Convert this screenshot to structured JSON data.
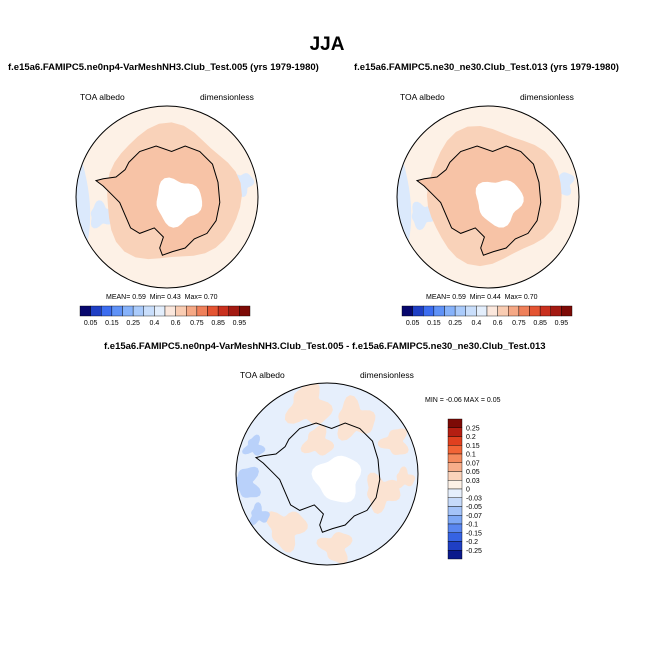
{
  "page": {
    "title": "JJA",
    "field_label": "TOA albedo",
    "units_label": "dimensionless"
  },
  "chart_data": [
    {
      "type": "heatmap",
      "projection": "south-polar-stereographic",
      "title": "f.e15a6.FAMIPC5.ne0np4-VarMeshNH3.Club_Test.005 (yrs 1979-1980)",
      "field": "TOA albedo",
      "units": "dimensionless",
      "stats": {
        "mean_label": "MEAN=",
        "mean": "0.59",
        "min_label": "Min=",
        "min": "0.43",
        "max_label": "Max=",
        "max": "0.70"
      },
      "colorbar": {
        "orientation": "horizontal",
        "tick_labels": [
          "0.05",
          "0.15",
          "0.25",
          "0.4",
          "0.6",
          "0.75",
          "0.85",
          "0.95"
        ],
        "levels": [
          0.05,
          0.1,
          0.15,
          0.2,
          0.25,
          0.3,
          0.4,
          0.5,
          0.6,
          0.65,
          0.7,
          0.75,
          0.8,
          0.85,
          0.9,
          0.95
        ],
        "colors": [
          "#08086e",
          "#1f3fc4",
          "#3c6df0",
          "#5f92f7",
          "#86b2fa",
          "#aacbfb",
          "#c9defb",
          "#e3eefc",
          "#fbe7dc",
          "#f9ccb2",
          "#f5a885",
          "#ef805a",
          "#e45432",
          "#c9301e",
          "#a31a12",
          "#7d0a06"
        ]
      },
      "regions": {
        "ocean_outer_midlatitude": 0.55,
        "sea_ice_ring": 0.63,
        "antarctic_plateau": 0.65,
        "polar_night_no_data": "missing",
        "low_albedo_patches_west": 0.45
      }
    },
    {
      "type": "heatmap",
      "projection": "south-polar-stereographic",
      "title": "f.e15a6.FAMIPC5.ne30_ne30.Club_Test.013 (yrs 1979-1980)",
      "field": "TOA albedo",
      "units": "dimensionless",
      "stats": {
        "mean_label": "MEAN=",
        "mean": "0.59",
        "min_label": "Min=",
        "min": "0.44",
        "max_label": "Max=",
        "max": "0.70"
      },
      "colorbar": {
        "orientation": "horizontal",
        "tick_labels": [
          "0.05",
          "0.15",
          "0.25",
          "0.4",
          "0.6",
          "0.75",
          "0.85",
          "0.95"
        ],
        "levels": [
          0.05,
          0.1,
          0.15,
          0.2,
          0.25,
          0.3,
          0.4,
          0.5,
          0.6,
          0.65,
          0.7,
          0.75,
          0.8,
          0.85,
          0.9,
          0.95
        ],
        "colors": [
          "#08086e",
          "#1f3fc4",
          "#3c6df0",
          "#5f92f7",
          "#86b2fa",
          "#aacbfb",
          "#c9defb",
          "#e3eefc",
          "#fbe7dc",
          "#f9ccb2",
          "#f5a885",
          "#ef805a",
          "#e45432",
          "#c9301e",
          "#a31a12",
          "#7d0a06"
        ]
      },
      "regions": {
        "ocean_outer_midlatitude": 0.55,
        "sea_ice_ring": 0.63,
        "antarctic_plateau": 0.65,
        "polar_night_no_data": "missing",
        "low_albedo_patches_west": 0.46
      }
    },
    {
      "type": "heatmap",
      "projection": "south-polar-stereographic",
      "title": "f.e15a6.FAMIPC5.ne0np4-VarMeshNH3.Club_Test.005 - f.e15a6.FAMIPC5.ne30_ne30.Club_Test.013",
      "field": "TOA albedo",
      "units": "dimensionless",
      "stats": {
        "min_label": "MIN =",
        "min": "-0.06",
        "max_label": "MAX =",
        "max": "0.05"
      },
      "colorbar": {
        "orientation": "vertical",
        "tick_labels": [
          "0.25",
          "0.2",
          "0.15",
          "0.1",
          "0.07",
          "0.05",
          "0.03",
          "0",
          "-0.03",
          "-0.05",
          "-0.07",
          "-0.1",
          "-0.15",
          "-0.2",
          "-0.25"
        ],
        "colors": [
          "#7d0a06",
          "#b51e12",
          "#e0401f",
          "#f26436",
          "#f58a5d",
          "#f8ae8a",
          "#fad3bb",
          "#fdf1e6",
          "#e6effc",
          "#c6dafa",
          "#a4c3f9",
          "#7ea8f6",
          "#5986f0",
          "#3663e3",
          "#1f3fc4",
          "#0b1a8c"
        ]
      },
      "regions": {
        "general_difference": 0.0,
        "positive_patches": 0.02,
        "negative_patches_west": -0.04
      }
    }
  ]
}
